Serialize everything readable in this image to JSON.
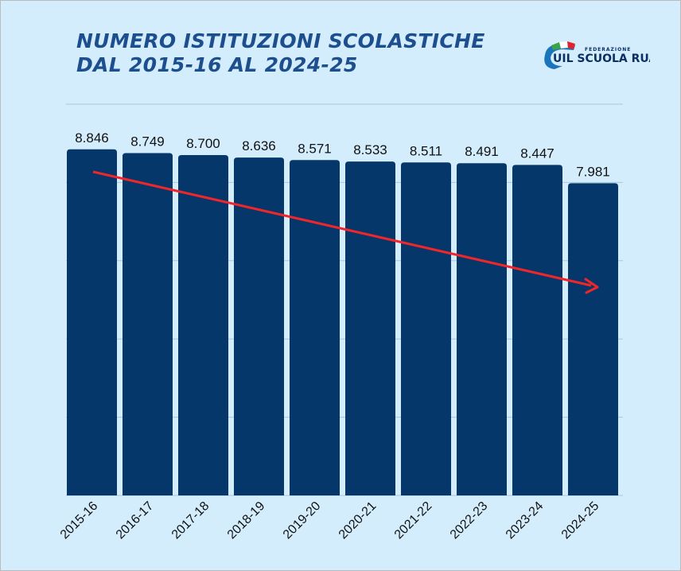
{
  "title_line1": "NUMERO ISTITUZIONI SCOLASTICHE",
  "title_line2": "DAL 2015-16 AL 2024-25",
  "logo": {
    "top": "FEDERAZIONE",
    "main": "UIL SCUOLA RUA"
  },
  "colors": {
    "background": "#d4edfd",
    "bar": "#06376a",
    "trend_arrow": "#f0262a",
    "title": "#1d4f8e"
  },
  "chart_data": {
    "type": "bar",
    "title": "NUMERO ISTITUZIONI SCOLASTICHE DAL 2015-16 AL 2024-25",
    "categories": [
      "2015-16",
      "2016-17",
      "2017-18",
      "2018-19",
      "2019-20",
      "2020-21",
      "2021-22",
      "2022-23",
      "2023-24",
      "2024-25"
    ],
    "values": [
      8846,
      8749,
      8700,
      8636,
      8571,
      8533,
      8511,
      8491,
      8447,
      7981
    ],
    "labels": [
      "8.846",
      "8.749",
      "8.700",
      "8.636",
      "8.571",
      "8.533",
      "8.511",
      "8.491",
      "8.447",
      "7.981"
    ],
    "ylim": [
      0,
      10000
    ],
    "grid": true,
    "gridlines": [
      0,
      2000,
      4000,
      6000,
      8000,
      10000
    ],
    "annotation": "red downward trend arrow"
  }
}
